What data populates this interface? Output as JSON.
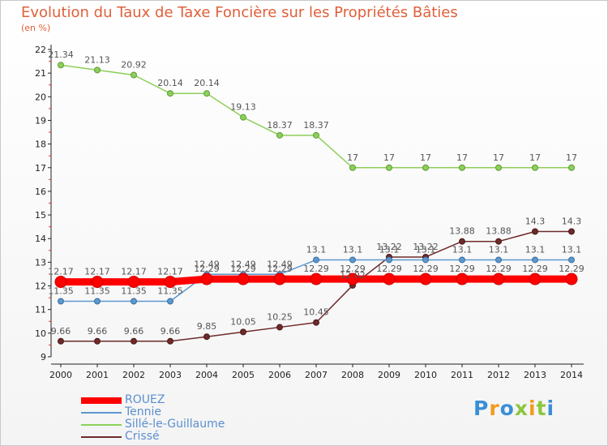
{
  "chart_data": {
    "type": "line",
    "title": "Evolution du Taux de Taxe Foncière sur les Propriétés Bâties",
    "subtitle": "(en %)",
    "x": [
      "2000",
      "2001",
      "2002",
      "2003",
      "2004",
      "2005",
      "2006",
      "2007",
      "2008",
      "2009",
      "2010",
      "2011",
      "2012",
      "2013",
      "2014"
    ],
    "ylim": [
      9,
      22
    ],
    "yticks": [
      9,
      10,
      11,
      12,
      13,
      14,
      15,
      16,
      17,
      18,
      19,
      20,
      21,
      22
    ],
    "series": [
      {
        "name": "ROUEZ",
        "color": "#ff0000",
        "values": [
          12.17,
          12.17,
          12.17,
          12.17,
          12.29,
          12.29,
          12.29,
          12.29,
          12.29,
          12.29,
          12.29,
          12.29,
          12.29,
          12.29,
          12.29
        ]
      },
      {
        "name": "Tennie",
        "color": "#5b97d0",
        "values": [
          11.35,
          11.35,
          11.35,
          11.35,
          12.49,
          12.49,
          12.49,
          13.1,
          13.1,
          13.1,
          13.1,
          13.1,
          13.1,
          13.1,
          13.1
        ]
      },
      {
        "name": "Sillé-le-Guillaume",
        "color": "#8cd05a",
        "values": [
          21.34,
          21.13,
          20.92,
          20.14,
          20.14,
          19.13,
          18.37,
          18.37,
          17,
          17,
          17,
          17,
          17,
          17,
          17
        ]
      },
      {
        "name": "Crissé",
        "color": "#6e2a2a",
        "values": [
          9.66,
          9.66,
          9.66,
          9.66,
          9.85,
          10.05,
          10.25,
          10.45,
          12.02,
          13.22,
          13.22,
          13.88,
          13.88,
          14.3,
          14.3
        ]
      }
    ],
    "labels": {
      "ROUEZ": [
        "12.17",
        "12.17",
        "12.17",
        "12.17",
        "12.29",
        "12.29",
        "12.29",
        "12.29",
        "12.29",
        "12.29",
        "12.29",
        "12.29",
        "12.29",
        "12.29",
        "12.29"
      ],
      "Tennie": [
        "11.35",
        "11.35",
        "11.35",
        "11.35",
        "12.49",
        "12.49",
        "12.49",
        "13.1",
        "13.1",
        "13.1",
        "13.1",
        "13.1",
        "13.1",
        "13.1",
        "13.1"
      ],
      "Sillé-le-Guillaume": [
        "21.34",
        "21.13",
        "20.92",
        "20.14",
        "20.14",
        "19.13",
        "18.37",
        "18.37",
        "17",
        "17",
        "17",
        "17",
        "17",
        "17",
        "17"
      ],
      "Crissé": [
        "9.66",
        "9.66",
        "9.66",
        "9.66",
        "9.85",
        "10.05",
        "10.25",
        "10.45",
        "12.02",
        "13.22",
        "13.22",
        "13.88",
        "13.88",
        "14.3",
        "14.3"
      ]
    }
  },
  "legend": [
    "ROUEZ",
    "Tennie",
    "Sillé-le-Guillaume",
    "Crissé"
  ],
  "brand": {
    "text": "Proxiti"
  }
}
